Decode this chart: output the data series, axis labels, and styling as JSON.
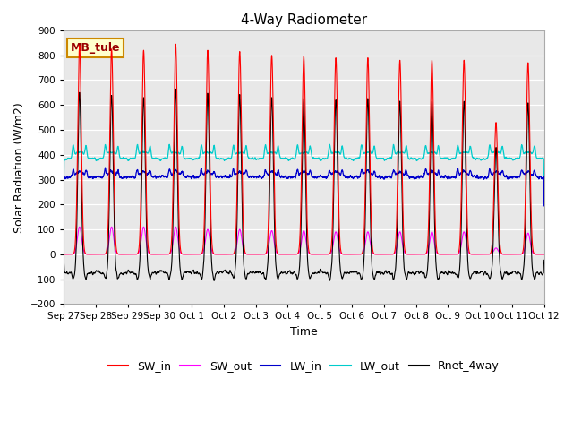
{
  "title": "4-Way Radiometer",
  "xlabel": "Time",
  "ylabel": "Solar Radiation (W/m2)",
  "ylim": [
    -200,
    900
  ],
  "yticks": [
    -200,
    -100,
    0,
    100,
    200,
    300,
    400,
    500,
    600,
    700,
    800,
    900
  ],
  "plot_bg_color": "#e8e8e8",
  "grid_color": "white",
  "annotation_text": "MB_tule",
  "annotation_bg": "#ffffcc",
  "annotation_border": "#cc8800",
  "annotation_text_color": "#990000",
  "legend_entries": [
    "SW_in",
    "SW_out",
    "LW_in",
    "LW_out",
    "Rnet_4way"
  ],
  "line_colors": {
    "SW_in": "#ff0000",
    "SW_out": "#ff00ff",
    "LW_in": "#0000cc",
    "LW_out": "#00cccc",
    "Rnet_4way": "#000000"
  },
  "n_days": 15,
  "day_labels": [
    "Sep 27",
    "Sep 28",
    "Sep 29",
    "Sep 30",
    "Oct 1",
    "Oct 2",
    "Oct 3",
    "Oct 4",
    "Oct 5",
    "Oct 6",
    "Oct 7",
    "Oct 8",
    "Oct 9",
    "Oct 10",
    "Oct 11",
    "Oct 12"
  ],
  "SW_in_peaks": [
    840,
    825,
    820,
    845,
    820,
    815,
    800,
    795,
    790,
    790,
    780,
    780,
    780,
    530,
    770
  ],
  "SW_out_peaks": [
    110,
    110,
    110,
    110,
    100,
    100,
    95,
    95,
    90,
    90,
    90,
    90,
    90,
    25,
    85
  ],
  "LW_in_base": 310,
  "LW_out_base": 390,
  "Rnet_night": -100,
  "Rnet_day_peak": 590
}
